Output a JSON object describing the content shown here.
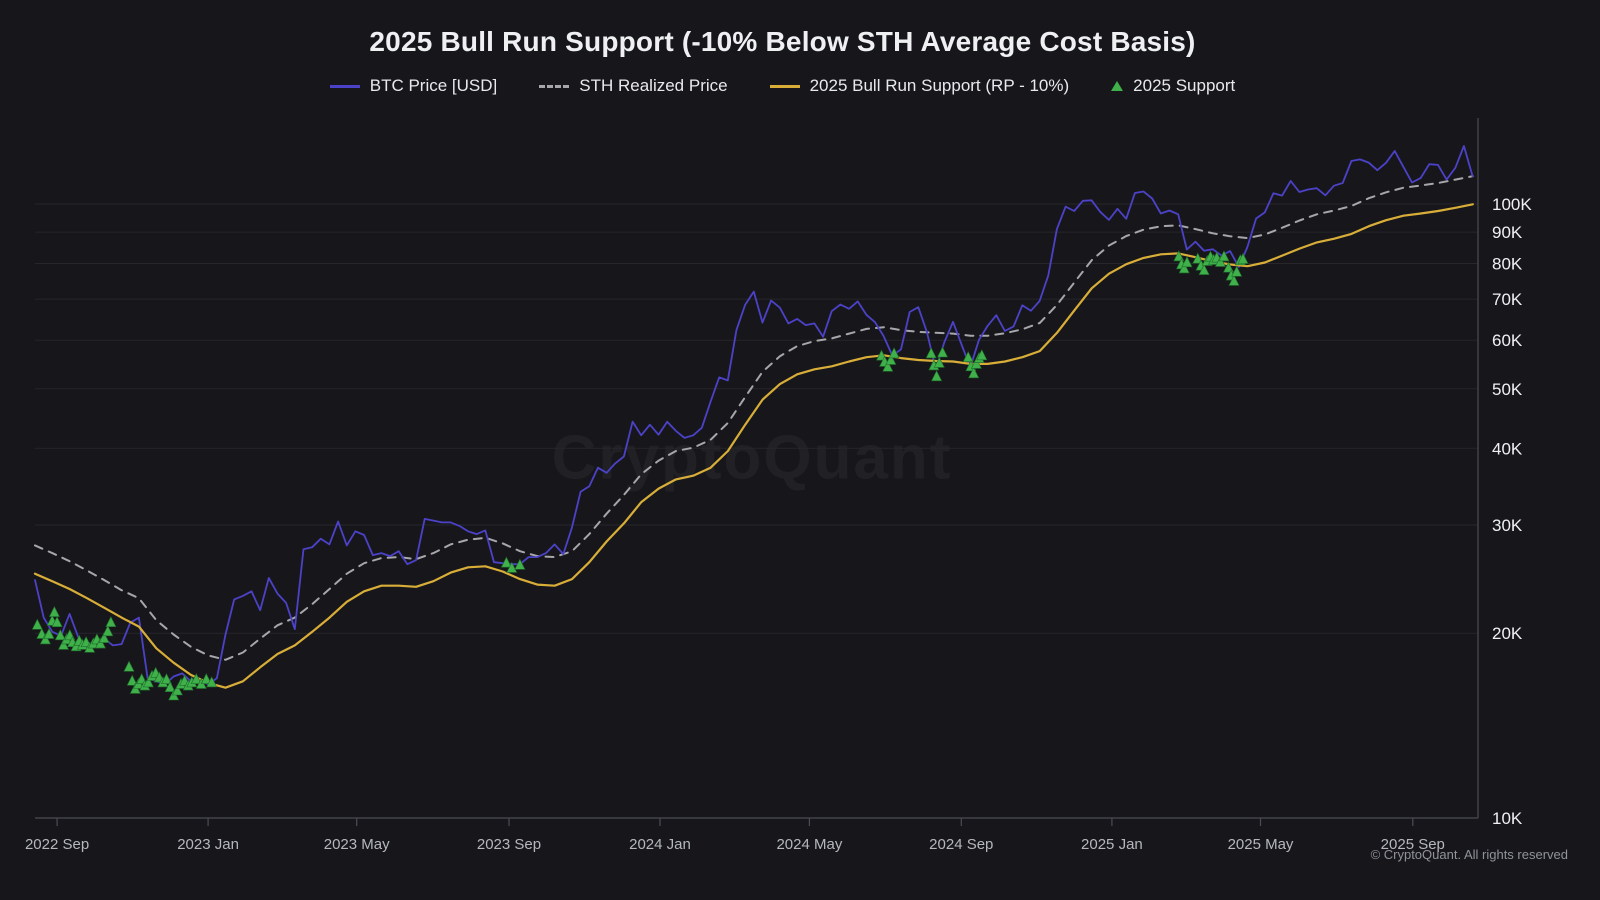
{
  "page": {
    "watermark": "CryptoQuant",
    "copyright": "© CryptoQuant. All rights reserved"
  },
  "chart_data": {
    "type": "line",
    "title": "2025 Bull Run Support (-10% Below STH Average Cost Basis)",
    "legend_position": "top",
    "colors": {
      "background": "#17171b",
      "grid": "#26262b",
      "axis": "#4a4d53",
      "tick_label_y": "#eef0f2",
      "tick_label_x": "#b4b8bd"
    },
    "x_axis": {
      "domain": [
        2022.617,
        2025.81
      ],
      "ticks": [
        {
          "t": 2022.6658,
          "label": "2022 Sep"
        },
        {
          "t": 2023.0,
          "label": "2023 Jan"
        },
        {
          "t": 2023.3288,
          "label": "2023 May"
        },
        {
          "t": 2023.6658,
          "label": "2023 Sep"
        },
        {
          "t": 2024.0,
          "label": "2024 Jan"
        },
        {
          "t": 2024.3306,
          "label": "2024 May"
        },
        {
          "t": 2024.6667,
          "label": "2024 Sep"
        },
        {
          "t": 2025.0,
          "label": "2025 Jan"
        },
        {
          "t": 2025.3288,
          "label": "2025 May"
        },
        {
          "t": 2025.6658,
          "label": "2025 Sep"
        }
      ]
    },
    "y_axis": {
      "scale": "log",
      "unit": "USD",
      "range_k": [
        10,
        134
      ],
      "ticks": [
        {
          "v": 10,
          "label": "10K"
        },
        {
          "v": 20,
          "label": "20K"
        },
        {
          "v": 30,
          "label": "30K"
        },
        {
          "v": 40,
          "label": "40K"
        },
        {
          "v": 50,
          "label": "50K"
        },
        {
          "v": 60,
          "label": "60K"
        },
        {
          "v": 70,
          "label": "70K"
        },
        {
          "v": 80,
          "label": "80K"
        },
        {
          "v": 90,
          "label": "90K"
        },
        {
          "v": 100,
          "label": "100K"
        }
      ]
    },
    "series": [
      {
        "name": "BTC Price [USD]",
        "type": "line",
        "color": "#4c42c8",
        "width": 1.8,
        "z": 2,
        "start": 2022.617,
        "step": 0.019163,
        "values": [
          24.4,
          21.2,
          20.1,
          19.8,
          21.5,
          19.7,
          18.9,
          19.4,
          19.6,
          19.1,
          19.2,
          20.8,
          21.2,
          16.9,
          16.7,
          16.5,
          17.0,
          17.2,
          16.7,
          16.8,
          16.5,
          16.9,
          19.9,
          22.7,
          23.0,
          23.4,
          21.8,
          24.6,
          23.2,
          22.4,
          20.3,
          27.4,
          27.6,
          28.5,
          27.9,
          30.4,
          27.8,
          29.3,
          28.9,
          26.8,
          27.0,
          26.7,
          27.2,
          25.9,
          26.3,
          30.7,
          30.5,
          30.3,
          30.3,
          29.9,
          29.3,
          29.0,
          29.4,
          26.1,
          26.0,
          25.9,
          25.9,
          26.6,
          26.6,
          27.0,
          27.9,
          26.9,
          29.7,
          34.0,
          34.7,
          37.2,
          36.5,
          37.8,
          38.8,
          44.2,
          42.0,
          43.7,
          42.1,
          44.2,
          42.7,
          41.6,
          42.0,
          43.2,
          47.6,
          52.2,
          51.6,
          62.4,
          68.5,
          72.0,
          64.1,
          69.6,
          67.8,
          63.9,
          65.0,
          63.5,
          63.9,
          60.8,
          66.9,
          68.6,
          67.5,
          69.4,
          66.0,
          64.2,
          60.9,
          56.6,
          58.0,
          66.7,
          67.9,
          61.8,
          53.8,
          59.5,
          64.3,
          59.0,
          54.2,
          60.1,
          63.3,
          65.9,
          62.1,
          63.2,
          68.4,
          67.0,
          69.5,
          76.5,
          91.0,
          99.0,
          97.4,
          101.2,
          101.4,
          97.1,
          94.2,
          98.2,
          94.6,
          104.2,
          104.8,
          102.1,
          96.5,
          97.6,
          96.2,
          84.3,
          86.8,
          83.9,
          84.4,
          82.4,
          83.8,
          79.0,
          85.1,
          94.7,
          96.9,
          104.1,
          103.2,
          109.0,
          104.6,
          105.6,
          106.1,
          103.3,
          107.1,
          108.2,
          117.5,
          118.2,
          116.8,
          113.5,
          116.7,
          122.0,
          115.0,
          108.4,
          110.2,
          116.1,
          115.8,
          109.6,
          114.5,
          124.3,
          111.0
        ]
      },
      {
        "name": "STH Realized Price",
        "type": "dashed-line",
        "color": "#a6a6ab",
        "width": 2,
        "z": 1,
        "start": 2022.617,
        "step": 0.03833,
        "values": [
          27.8,
          27.0,
          26.2,
          25.3,
          24.4,
          23.5,
          22.8,
          21.0,
          19.9,
          19.0,
          18.4,
          18.1,
          18.6,
          19.6,
          20.6,
          21.2,
          22.3,
          23.6,
          25.0,
          26.0,
          26.5,
          26.6,
          26.4,
          27.0,
          27.9,
          28.4,
          28.6,
          28.0,
          27.2,
          26.7,
          26.6,
          27.2,
          29.0,
          31.3,
          33.6,
          36.3,
          38.2,
          39.6,
          40.1,
          41.3,
          44.0,
          48.5,
          53.3,
          56.5,
          58.7,
          59.8,
          60.4,
          61.5,
          62.6,
          63.0,
          62.3,
          61.9,
          61.7,
          61.5,
          61.0,
          61.0,
          61.6,
          62.5,
          64.0,
          68.5,
          74.5,
          81.0,
          85.6,
          88.7,
          90.8,
          92.0,
          92.3,
          91.0,
          89.6,
          88.6,
          88.0,
          89.2,
          91.5,
          94.0,
          96.2,
          97.6,
          99.3,
          102.2,
          104.5,
          106.3,
          107.2,
          108.2,
          109.6,
          111.0
        ]
      },
      {
        "name": "2025 Bull Run Support (RP - 10%)",
        "type": "line",
        "color": "#d9ae38",
        "width": 2.2,
        "z": 3,
        "start": 2022.617,
        "step": 0.03833,
        "values": [
          25.0,
          24.3,
          23.6,
          22.8,
          22.0,
          21.2,
          20.5,
          18.9,
          17.9,
          17.1,
          16.6,
          16.3,
          16.7,
          17.6,
          18.5,
          19.1,
          20.1,
          21.2,
          22.5,
          23.4,
          23.9,
          23.9,
          23.8,
          24.3,
          25.1,
          25.6,
          25.7,
          25.2,
          24.5,
          24.0,
          23.9,
          24.5,
          26.1,
          28.2,
          30.2,
          32.7,
          34.4,
          35.6,
          36.1,
          37.2,
          39.6,
          43.7,
          48.0,
          50.9,
          52.8,
          53.8,
          54.4,
          55.4,
          56.3,
          56.7,
          56.1,
          55.7,
          55.5,
          55.4,
          54.9,
          54.9,
          55.4,
          56.3,
          57.6,
          61.7,
          67.1,
          72.9,
          77.0,
          79.8,
          81.7,
          82.8,
          83.1,
          81.9,
          80.6,
          79.7,
          79.2,
          80.3,
          82.4,
          84.6,
          86.6,
          87.8,
          89.4,
          92.0,
          94.1,
          95.7,
          96.5,
          97.4,
          98.6,
          99.9
        ]
      },
      {
        "name": "2025 Support",
        "type": "scatter-triangle",
        "color": "#3fb04a",
        "outline": "#1f6d2a",
        "z": 4,
        "points": [
          [
            2022.622,
            20.6
          ],
          [
            2022.632,
            19.9
          ],
          [
            2022.64,
            19.5
          ],
          [
            2022.648,
            19.9
          ],
          [
            2022.655,
            20.9
          ],
          [
            2022.66,
            21.6
          ],
          [
            2022.666,
            20.8
          ],
          [
            2022.673,
            19.8
          ],
          [
            2022.68,
            19.1
          ],
          [
            2022.687,
            19.5
          ],
          [
            2022.694,
            19.8
          ],
          [
            2022.7,
            19.3
          ],
          [
            2022.708,
            19.0
          ],
          [
            2022.715,
            19.4
          ],
          [
            2022.722,
            19.1
          ],
          [
            2022.73,
            19.3
          ],
          [
            2022.738,
            18.9
          ],
          [
            2022.746,
            19.2
          ],
          [
            2022.754,
            19.5
          ],
          [
            2022.762,
            19.2
          ],
          [
            2022.77,
            19.6
          ],
          [
            2022.778,
            20.1
          ],
          [
            2022.785,
            20.8
          ],
          [
            2022.825,
            17.6
          ],
          [
            2022.832,
            16.7
          ],
          [
            2022.839,
            16.2
          ],
          [
            2022.846,
            16.5
          ],
          [
            2022.853,
            16.8
          ],
          [
            2022.86,
            16.4
          ],
          [
            2022.868,
            16.6
          ],
          [
            2022.876,
            17.0
          ],
          [
            2022.884,
            17.2
          ],
          [
            2022.892,
            16.9
          ],
          [
            2022.9,
            16.6
          ],
          [
            2022.908,
            16.8
          ],
          [
            2022.916,
            16.3
          ],
          [
            2022.924,
            15.8
          ],
          [
            2022.932,
            16.1
          ],
          [
            2022.94,
            16.5
          ],
          [
            2022.948,
            16.7
          ],
          [
            2022.956,
            16.4
          ],
          [
            2022.964,
            16.6
          ],
          [
            2022.974,
            16.8
          ],
          [
            2022.985,
            16.5
          ],
          [
            2022.996,
            16.8
          ],
          [
            2023.008,
            16.6
          ],
          [
            2023.66,
            26.0
          ],
          [
            2023.672,
            25.5
          ],
          [
            2023.69,
            25.8
          ],
          [
            2024.49,
            56.5
          ],
          [
            2024.497,
            55.2
          ],
          [
            2024.504,
            54.2
          ],
          [
            2024.511,
            55.6
          ],
          [
            2024.518,
            57.0
          ],
          [
            2024.6,
            57.0
          ],
          [
            2024.606,
            54.5
          ],
          [
            2024.612,
            52.3
          ],
          [
            2024.618,
            55.0
          ],
          [
            2024.625,
            57.2
          ],
          [
            2024.682,
            56.2
          ],
          [
            2024.688,
            54.3
          ],
          [
            2024.694,
            52.9
          ],
          [
            2024.7,
            54.8
          ],
          [
            2024.706,
            56.0
          ],
          [
            2024.712,
            56.6
          ],
          [
            2025.148,
            82.0
          ],
          [
            2025.154,
            79.6
          ],
          [
            2025.16,
            78.4
          ],
          [
            2025.166,
            80.2
          ],
          [
            2025.19,
            81.3
          ],
          [
            2025.197,
            79.2
          ],
          [
            2025.204,
            77.9
          ],
          [
            2025.211,
            80.6
          ],
          [
            2025.218,
            81.9
          ],
          [
            2025.225,
            80.9
          ],
          [
            2025.232,
            81.6
          ],
          [
            2025.24,
            80.3
          ],
          [
            2025.248,
            82.0
          ],
          [
            2025.258,
            78.6
          ],
          [
            2025.264,
            76.3
          ],
          [
            2025.27,
            74.8
          ],
          [
            2025.276,
            77.4
          ],
          [
            2025.284,
            80.8
          ],
          [
            2025.29,
            81.2
          ]
        ]
      }
    ]
  }
}
